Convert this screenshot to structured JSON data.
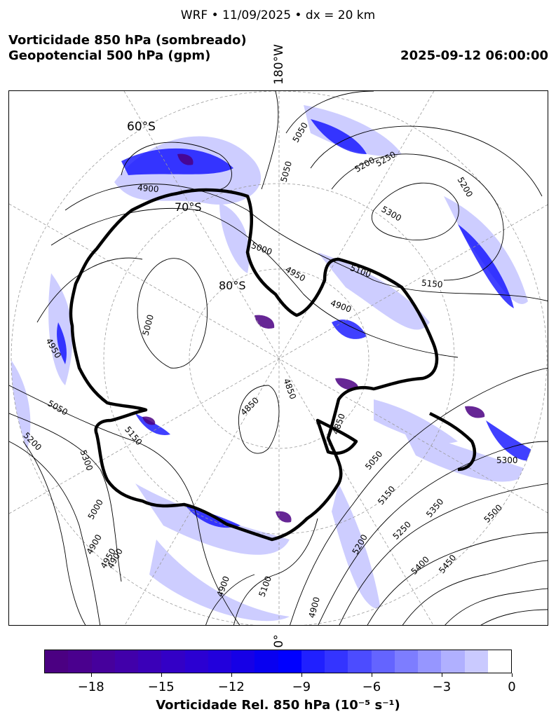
{
  "header": {
    "suptitle": "WRF • 11/09/2025 • dx = 20 km",
    "title_line1": "Vorticidade 850 hPa (sombreado)",
    "title_line2": "Geopotencial 500 hPa (gpm)",
    "valid_time": "2025-09-12 06:00:00"
  },
  "map": {
    "projection": "south-polar-stereographic",
    "longitude_labels": {
      "top": "180°W",
      "bottom": "0°"
    },
    "latitude_labels": [
      "60°S",
      "70°S",
      "80°S"
    ],
    "contour_labels": [
      "5050",
      "5200",
      "5250",
      "5200",
      "5300",
      "5150",
      "5100",
      "4900",
      "4950",
      "5000",
      "5000",
      "4900",
      "4950",
      "5050",
      "5200",
      "5300",
      "5150",
      "5000",
      "4900",
      "4950",
      "4850",
      "4850",
      "4850",
      "5050",
      "5150",
      "5250",
      "5200",
      "5350",
      "5400",
      "5450",
      "5500",
      "4900",
      "4900",
      "5100",
      "4900",
      "5300",
      "5050"
    ],
    "colors": {
      "coastline": "#000000",
      "contour": "#000000",
      "gridline": "#9a9a9a",
      "vorticity_weak": "#c8c8ff",
      "vorticity_strong": "#0000ff",
      "vorticity_extreme": "#4b0082"
    }
  },
  "colorbar": {
    "label": "Vorticidade Rel. 850 hPa (10⁻⁵ s⁻¹)",
    "ticks": [
      "−18",
      "−15",
      "−12",
      "−9",
      "−6",
      "−3",
      "0"
    ],
    "range": [
      -20,
      0
    ],
    "colors": [
      "#4b0082",
      "#4a008e",
      "#46009c",
      "#4100aa",
      "#3a00b8",
      "#3300c6",
      "#2b00d2",
      "#2200dc",
      "#1600e6",
      "#0800f0",
      "#0000ff",
      "#2020ff",
      "#3434ff",
      "#4c4cff",
      "#6464ff",
      "#7d7dff",
      "#9696ff",
      "#b0b0ff",
      "#cacaff",
      "#ffffff"
    ]
  }
}
